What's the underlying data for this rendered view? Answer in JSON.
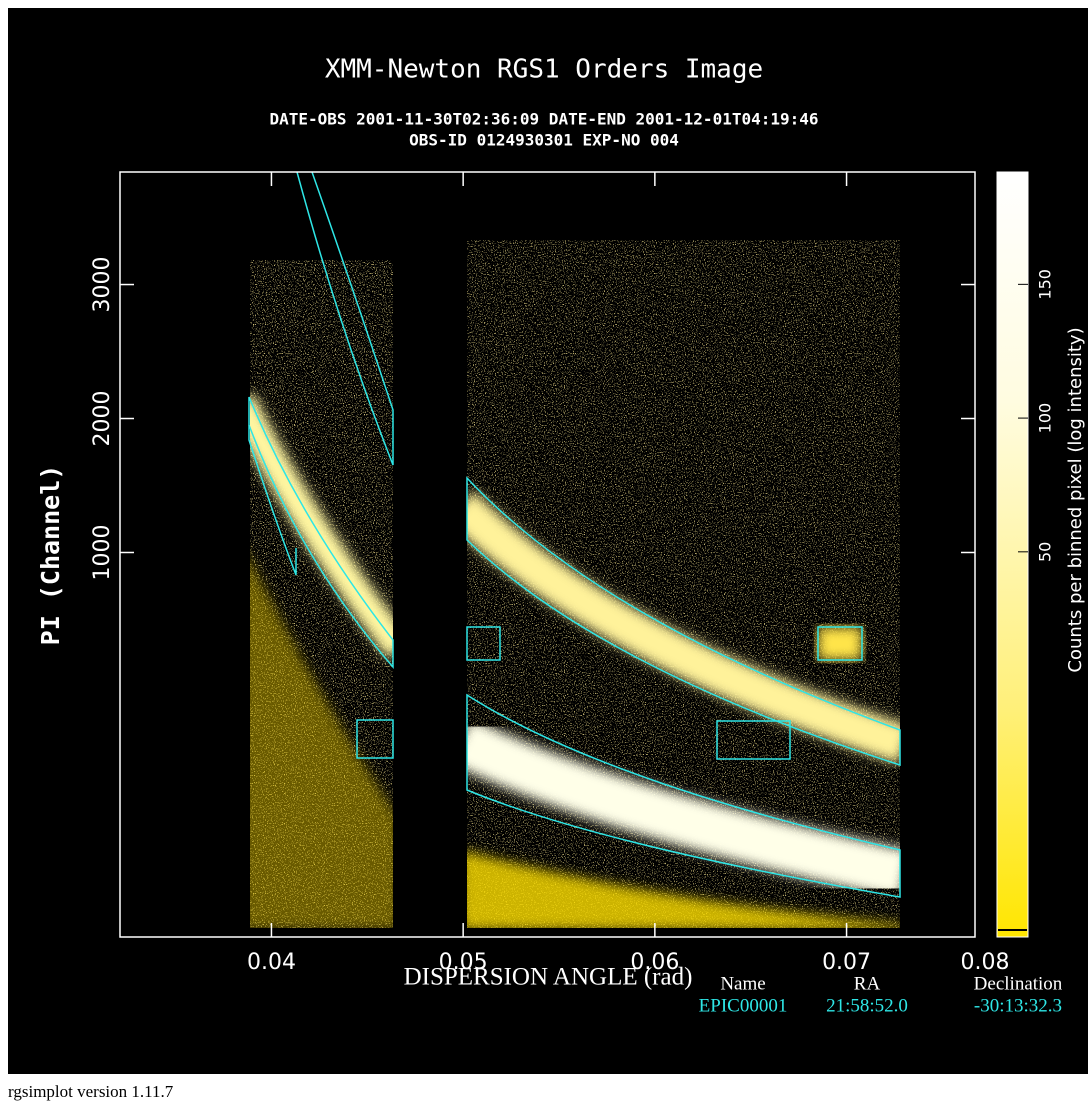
{
  "chart_data": {
    "type": "heatmap",
    "title": "XMM-Newton  RGS1 Orders Image",
    "subtitle": [
      "DATE-OBS 2001-11-30T02:36:09   DATE-END 2001-12-01T04:19:46",
      "OBS-ID 0124930301 EXP-NO 004"
    ],
    "x_label": "DISPERSION ANGLE (rad)",
    "y_label": "PI (Channel)",
    "xlim": [
      0.0321,
      0.0767
    ],
    "xticks": [
      0.04,
      0.05,
      0.06,
      0.07,
      0.08
    ],
    "ylim": [
      -1870,
      3840
    ],
    "yticks": [
      1000,
      2000,
      3000
    ],
    "colorbar": {
      "label": "Counts per binned pixel (log intensity)",
      "lim": [
        -94,
        192
      ],
      "ticks": [
        50,
        100,
        150
      ]
    },
    "source_table": {
      "columns": [
        "Name",
        "RA",
        "Declination"
      ],
      "rows": [
        [
          "EPIC00001",
          "21:58:52.0",
          "-30:13:32.3"
        ]
      ]
    },
    "footer": "rgsimplot version 1.11.7"
  }
}
